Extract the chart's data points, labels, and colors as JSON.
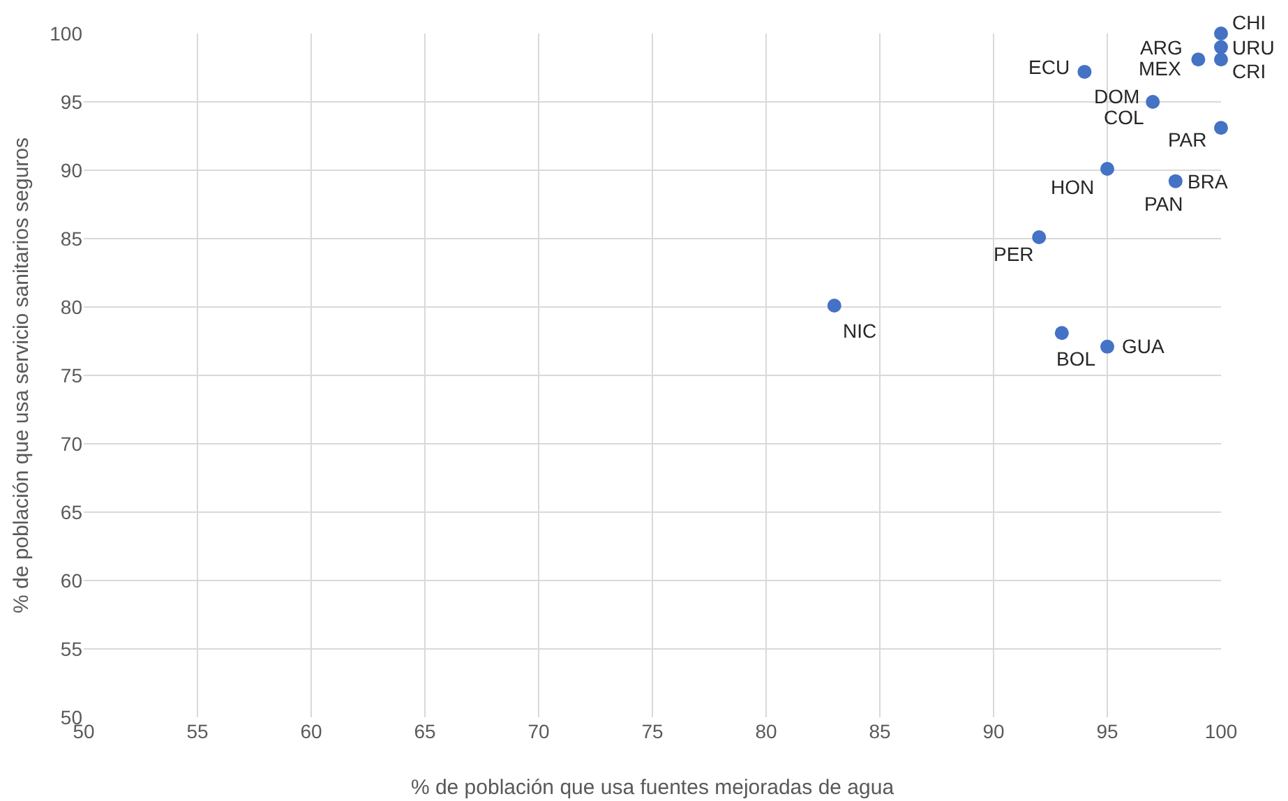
{
  "chart_data": {
    "type": "scatter",
    "xlabel": "% de población que usa fuentes mejoradas de agua",
    "ylabel": "% de población que usa servicio sanitarios seguros",
    "x": [
      100,
      100,
      100,
      99,
      94,
      97,
      100,
      95,
      98,
      92,
      83,
      93,
      95
    ],
    "values": [
      100,
      99,
      98.1,
      98.1,
      97.2,
      95,
      93.1,
      90.1,
      89.2,
      85.1,
      80.1,
      78.1,
      77.1
    ],
    "color": "#4472c4",
    "marker": "circle",
    "xlim": [
      50,
      100
    ],
    "xticks": [
      50,
      55,
      60,
      65,
      70,
      75,
      80,
      85,
      90,
      95,
      100
    ],
    "ylim": [
      50,
      100
    ],
    "yticks": [
      50,
      55,
      60,
      65,
      70,
      75,
      80,
      85,
      90,
      95,
      100
    ],
    "grid": true,
    "annotations": [
      {
        "text": "CHI",
        "x": 100,
        "y": 100
      },
      {
        "text": "URU",
        "x": 100,
        "y": 99
      },
      {
        "text": "CRI",
        "x": 100,
        "y": 98.1
      },
      {
        "text": "ARG",
        "x": 99,
        "y": 98.1
      },
      {
        "text": "MEX",
        "x": 99,
        "y": 98.1
      },
      {
        "text": "ECU",
        "x": 94,
        "y": 97.2
      },
      {
        "text": "DOM",
        "x": 97,
        "y": 95
      },
      {
        "text": "COL",
        "x": 97,
        "y": 95
      },
      {
        "text": "PAR",
        "x": 100,
        "y": 93.1
      },
      {
        "text": "HON",
        "x": 95,
        "y": 90.1
      },
      {
        "text": "BRA",
        "x": 98,
        "y": 89.2
      },
      {
        "text": "PAN",
        "x": 98,
        "y": 89.2
      },
      {
        "text": "PER",
        "x": 92,
        "y": 85.1
      },
      {
        "text": "NIC",
        "x": 83,
        "y": 80.1
      },
      {
        "text": "BOL",
        "x": 93,
        "y": 78.1
      },
      {
        "text": "GUA",
        "x": 95,
        "y": 77.1
      }
    ]
  }
}
